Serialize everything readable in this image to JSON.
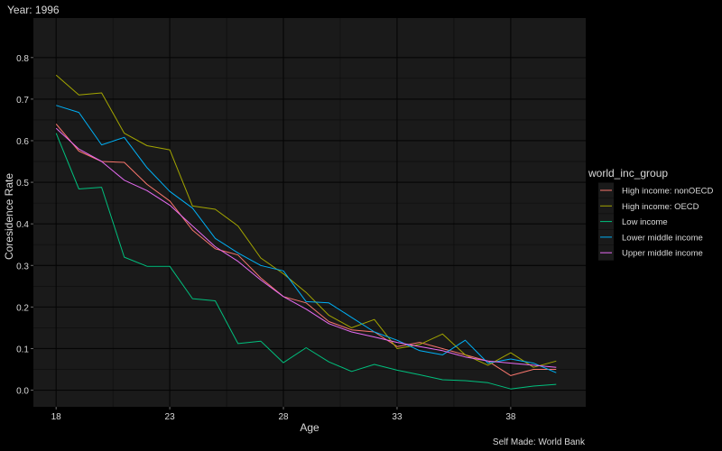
{
  "chart_data": {
    "type": "line",
    "title": "Year: 1996",
    "xlabel": "Age",
    "ylabel": "Coresidence Rate",
    "caption": "Self Made: World Bank",
    "xlim": [
      17,
      41.3
    ],
    "ylim": [
      -0.04,
      0.895
    ],
    "x_ticks": [
      18,
      23,
      28,
      33,
      38
    ],
    "y_ticks": [
      0.0,
      0.1,
      0.2,
      0.3,
      0.4,
      0.5,
      0.6,
      0.7,
      0.8
    ],
    "y_tick_labels": [
      "0.0",
      "0.1",
      "0.2",
      "0.3",
      "0.4",
      "0.5",
      "0.6",
      "0.7",
      "0.8"
    ],
    "x_tick_labels": [
      "18",
      "23",
      "28",
      "33",
      "38"
    ],
    "grid": true,
    "legend_position": "right",
    "legend_title": "world_inc_group",
    "x": [
      18,
      19,
      20,
      21,
      22,
      23,
      24,
      25,
      26,
      27,
      28,
      29,
      30,
      31,
      32,
      33,
      34,
      35,
      36,
      37,
      38,
      39,
      40
    ],
    "series": [
      {
        "name": "High income: nonOECD",
        "color": "#F8766D",
        "values": [
          0.64,
          0.575,
          0.55,
          0.548,
          0.495,
          0.455,
          0.385,
          0.34,
          0.325,
          0.27,
          0.225,
          0.21,
          0.165,
          0.145,
          0.14,
          0.105,
          0.115,
          0.1,
          0.085,
          0.07,
          0.035,
          0.05,
          0.05
        ]
      },
      {
        "name": "High income: OECD",
        "color": "#A3A500",
        "values": [
          0.758,
          0.71,
          0.715,
          0.618,
          0.588,
          0.578,
          0.443,
          0.435,
          0.395,
          0.318,
          0.28,
          0.235,
          0.18,
          0.15,
          0.17,
          0.1,
          0.11,
          0.135,
          0.085,
          0.06,
          0.09,
          0.055,
          0.07
        ]
      },
      {
        "name": "Low income",
        "color": "#00BF7D",
        "values": [
          0.618,
          0.484,
          0.488,
          0.32,
          0.298,
          0.298,
          0.22,
          0.215,
          0.112,
          0.118,
          0.066,
          0.102,
          0.068,
          0.045,
          0.062,
          0.048,
          0.037,
          0.025,
          0.023,
          0.018,
          0.003,
          0.01,
          0.014
        ]
      },
      {
        "name": "Lower middle income",
        "color": "#00B0F6",
        "values": [
          0.685,
          0.668,
          0.59,
          0.608,
          0.535,
          0.478,
          0.438,
          0.365,
          0.33,
          0.3,
          0.287,
          0.213,
          0.21,
          0.175,
          0.14,
          0.12,
          0.095,
          0.085,
          0.12,
          0.065,
          0.075,
          0.065,
          0.042
        ]
      },
      {
        "name": "Upper middle income",
        "color": "#E76BF3",
        "values": [
          0.63,
          0.58,
          0.55,
          0.505,
          0.48,
          0.445,
          0.395,
          0.345,
          0.31,
          0.265,
          0.225,
          0.195,
          0.16,
          0.14,
          0.128,
          0.115,
          0.105,
          0.095,
          0.08,
          0.07,
          0.065,
          0.06,
          0.055
        ]
      }
    ]
  }
}
